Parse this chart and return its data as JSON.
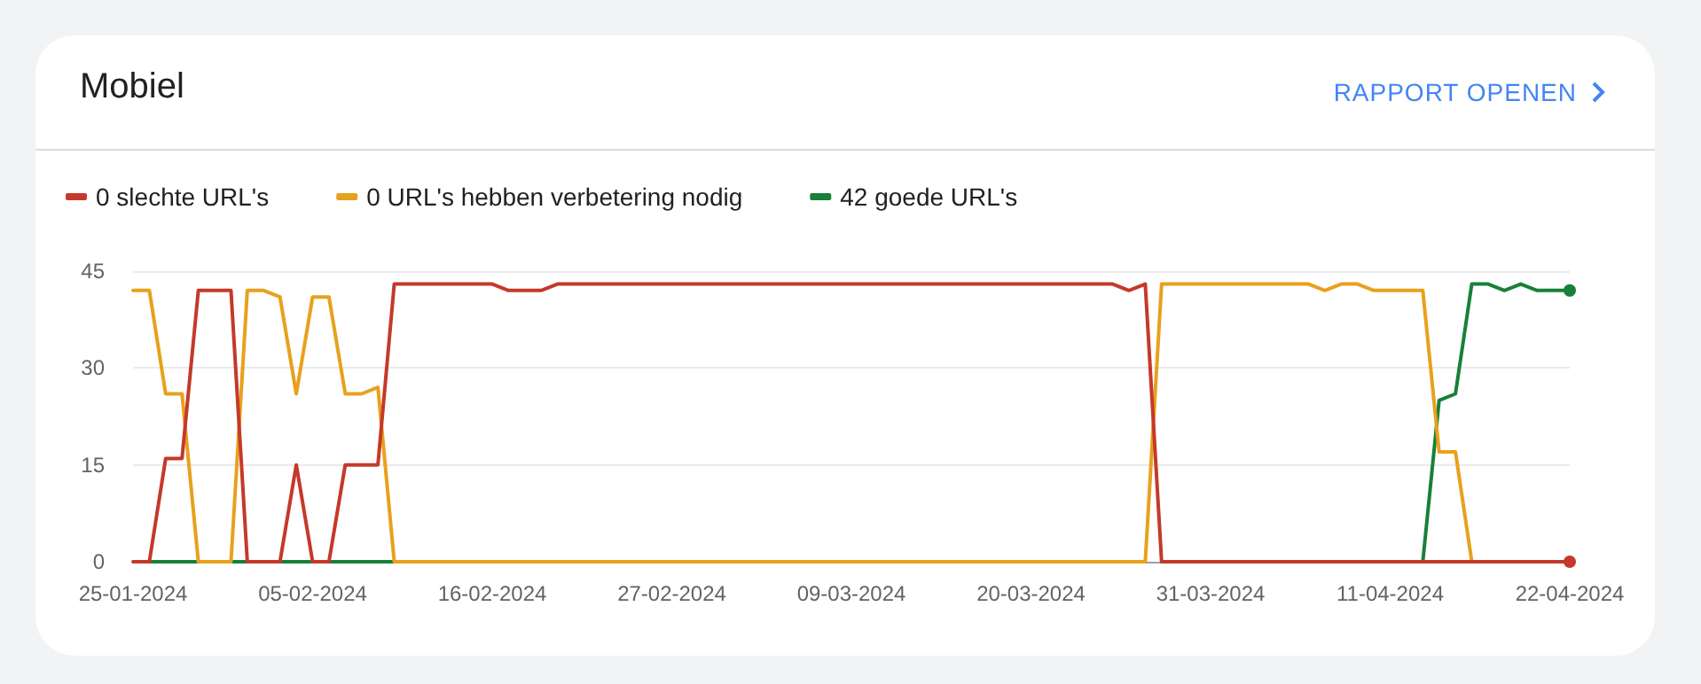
{
  "chart_data": {
    "type": "line",
    "title": "Mobiel",
    "annotations": [
      "RAPPORT OPENEN"
    ],
    "x": [
      "2024-01-25",
      "2024-01-26",
      "2024-01-27",
      "2024-01-28",
      "2024-01-29",
      "2024-01-30",
      "2024-01-31",
      "2024-02-01",
      "2024-02-02",
      "2024-02-03",
      "2024-02-04",
      "2024-02-05",
      "2024-02-06",
      "2024-02-07",
      "2024-02-08",
      "2024-02-09",
      "2024-02-10",
      "2024-02-11",
      "2024-02-12",
      "2024-02-13",
      "2024-02-14",
      "2024-02-15",
      "2024-02-16",
      "2024-02-17",
      "2024-02-18",
      "2024-02-19",
      "2024-02-20",
      "2024-02-21",
      "2024-02-22",
      "2024-02-23",
      "2024-02-24",
      "2024-02-25",
      "2024-02-26",
      "2024-02-27",
      "2024-02-28",
      "2024-02-29",
      "2024-03-01",
      "2024-03-02",
      "2024-03-03",
      "2024-03-04",
      "2024-03-05",
      "2024-03-06",
      "2024-03-07",
      "2024-03-08",
      "2024-03-09",
      "2024-03-10",
      "2024-03-11",
      "2024-03-12",
      "2024-03-13",
      "2024-03-14",
      "2024-03-15",
      "2024-03-16",
      "2024-03-17",
      "2024-03-18",
      "2024-03-19",
      "2024-03-20",
      "2024-03-21",
      "2024-03-22",
      "2024-03-23",
      "2024-03-24",
      "2024-03-25",
      "2024-03-26",
      "2024-03-27",
      "2024-03-28",
      "2024-03-29",
      "2024-03-30",
      "2024-03-31",
      "2024-04-01",
      "2024-04-02",
      "2024-04-03",
      "2024-04-04",
      "2024-04-05",
      "2024-04-06",
      "2024-04-07",
      "2024-04-08",
      "2024-04-09",
      "2024-04-10",
      "2024-04-11",
      "2024-04-12",
      "2024-04-13",
      "2024-04-14",
      "2024-04-15",
      "2024-04-16",
      "2024-04-17",
      "2024-04-18",
      "2024-04-19",
      "2024-04-20",
      "2024-04-21",
      "2024-04-22"
    ],
    "series": [
      {
        "name": "0 slechte URL's",
        "color": "#c5392a",
        "values": [
          0,
          0,
          16,
          16,
          42,
          42,
          42,
          0,
          0,
          0,
          15,
          0,
          0,
          15,
          15,
          15,
          43,
          43,
          43,
          43,
          43,
          43,
          43,
          42,
          42,
          42,
          43,
          43,
          43,
          43,
          43,
          43,
          43,
          43,
          43,
          43,
          43,
          43,
          43,
          43,
          43,
          43,
          43,
          43,
          43,
          43,
          43,
          43,
          43,
          43,
          43,
          43,
          43,
          43,
          43,
          43,
          43,
          43,
          43,
          43,
          43,
          42,
          43,
          0,
          0,
          0,
          0,
          0,
          0,
          0,
          0,
          0,
          0,
          0,
          0,
          0,
          0,
          0,
          0,
          0,
          0,
          0,
          0,
          0,
          0,
          0,
          0,
          0,
          0
        ]
      },
      {
        "name": "0 URL's hebben verbetering nodig",
        "color": "#e8a11c",
        "values": [
          42,
          42,
          26,
          26,
          0,
          0,
          0,
          42,
          42,
          41,
          26,
          41,
          41,
          26,
          26,
          27,
          0,
          0,
          0,
          0,
          0,
          0,
          0,
          0,
          0,
          0,
          0,
          0,
          0,
          0,
          0,
          0,
          0,
          0,
          0,
          0,
          0,
          0,
          0,
          0,
          0,
          0,
          0,
          0,
          0,
          0,
          0,
          0,
          0,
          0,
          0,
          0,
          0,
          0,
          0,
          0,
          0,
          0,
          0,
          0,
          0,
          0,
          0,
          43,
          43,
          43,
          43,
          43,
          43,
          43,
          43,
          43,
          43,
          42,
          43,
          43,
          42,
          42,
          42,
          42,
          17,
          17,
          0,
          null,
          null,
          null,
          null,
          null,
          null
        ]
      },
      {
        "name": "42 goede URL's",
        "color": "#188038",
        "values": [
          null,
          0,
          0,
          0,
          0,
          null,
          0,
          0,
          null,
          0,
          0,
          0,
          0,
          0,
          0,
          0,
          0,
          null,
          null,
          null,
          null,
          null,
          null,
          null,
          null,
          null,
          null,
          null,
          null,
          null,
          null,
          null,
          null,
          null,
          null,
          null,
          null,
          null,
          null,
          null,
          null,
          null,
          null,
          null,
          null,
          null,
          null,
          null,
          null,
          null,
          null,
          null,
          null,
          null,
          null,
          null,
          null,
          null,
          null,
          null,
          null,
          null,
          null,
          null,
          null,
          null,
          null,
          null,
          null,
          null,
          null,
          null,
          null,
          null,
          null,
          null,
          null,
          null,
          null,
          0,
          25,
          26,
          43,
          43,
          42,
          43,
          42,
          42,
          42
        ]
      }
    ],
    "xlim": [
      "2024-01-25",
      "2024-04-22"
    ],
    "xticks": [
      {
        "value": "2024-01-25",
        "label": "25-01-2024"
      },
      {
        "value": "2024-02-05",
        "label": "05-02-2024"
      },
      {
        "value": "2024-02-16",
        "label": "16-02-2024"
      },
      {
        "value": "2024-02-27",
        "label": "27-02-2024"
      },
      {
        "value": "2024-03-09",
        "label": "09-03-2024"
      },
      {
        "value": "2024-03-20",
        "label": "20-03-2024"
      },
      {
        "value": "2024-03-31",
        "label": "31-03-2024"
      },
      {
        "value": "2024-04-11",
        "label": "11-04-2024"
      },
      {
        "value": "2024-04-22",
        "label": "22-04-2024"
      }
    ],
    "ylim": [
      0,
      45
    ],
    "yticks": [
      0,
      15,
      30,
      45
    ],
    "grid": "y",
    "legend": "top left",
    "line_style": "solid"
  }
}
